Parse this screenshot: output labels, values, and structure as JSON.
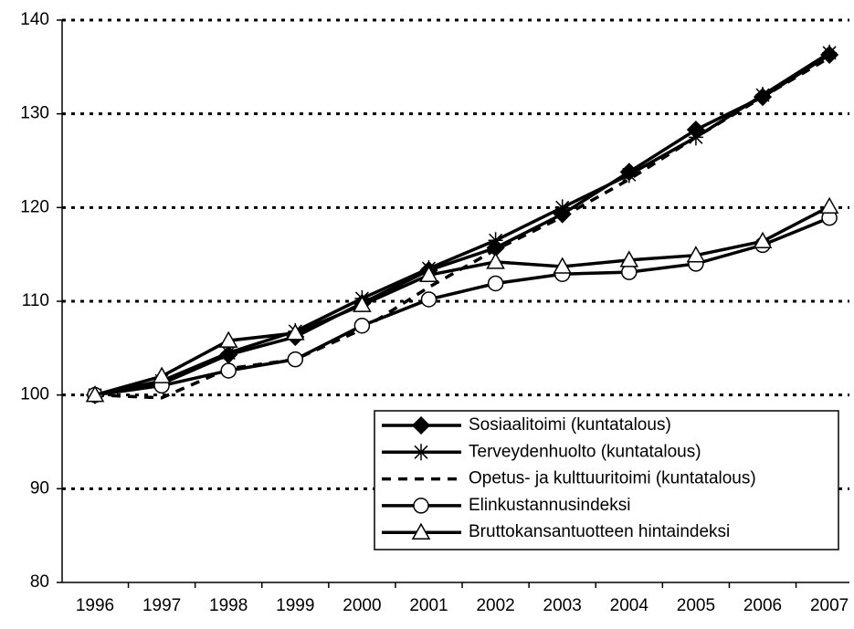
{
  "chart_data": {
    "type": "line",
    "categories": [
      "1996",
      "1997",
      "1998",
      "1999",
      "2000",
      "2001",
      "2002",
      "2003",
      "2004",
      "2005",
      "2006",
      "2007"
    ],
    "series": [
      {
        "name": "Sosiaalitoimi (kuntatalous)",
        "color": "#000000",
        "marker": "diamond",
        "dash": false,
        "values": [
          100,
          101.2,
          104.3,
          106.2,
          109.8,
          113.3,
          115.7,
          119.3,
          123.8,
          128.3,
          131.8,
          136.3
        ]
      },
      {
        "name": "Terveydenhuolto (kuntatalous)",
        "color": "#000000",
        "marker": "star",
        "dash": false,
        "values": [
          100,
          101.5,
          104.5,
          106.8,
          110.3,
          113.5,
          116.5,
          120.0,
          123.5,
          127.5,
          132.0,
          136.5
        ]
      },
      {
        "name": "Opetus- ja kulttuuritoimi (kuntatalous)",
        "color": "#000000",
        "marker": "none",
        "dash": true,
        "values": [
          100,
          99.7,
          102.8,
          103.8,
          107.0,
          111.5,
          115.5,
          119.0,
          123.0,
          127.5,
          131.8,
          136.0
        ]
      },
      {
        "name": "Elinkustannusindeksi",
        "color": "#000000",
        "marker": "circle",
        "dash": false,
        "values": [
          100,
          101.0,
          102.6,
          103.8,
          107.4,
          110.2,
          111.9,
          112.9,
          113.1,
          114.0,
          116.0,
          118.9
        ]
      },
      {
        "name": "Bruttokansantuotteen hintaindeksi",
        "color": "#000000",
        "marker": "triangle",
        "dash": false,
        "values": [
          100,
          102.0,
          105.8,
          106.6,
          109.6,
          112.8,
          114.2,
          113.7,
          114.4,
          114.9,
          116.4,
          120.1
        ]
      }
    ],
    "ylim": [
      80,
      140
    ],
    "yticks": [
      80,
      90,
      100,
      110,
      120,
      130,
      140
    ],
    "grid": true
  }
}
